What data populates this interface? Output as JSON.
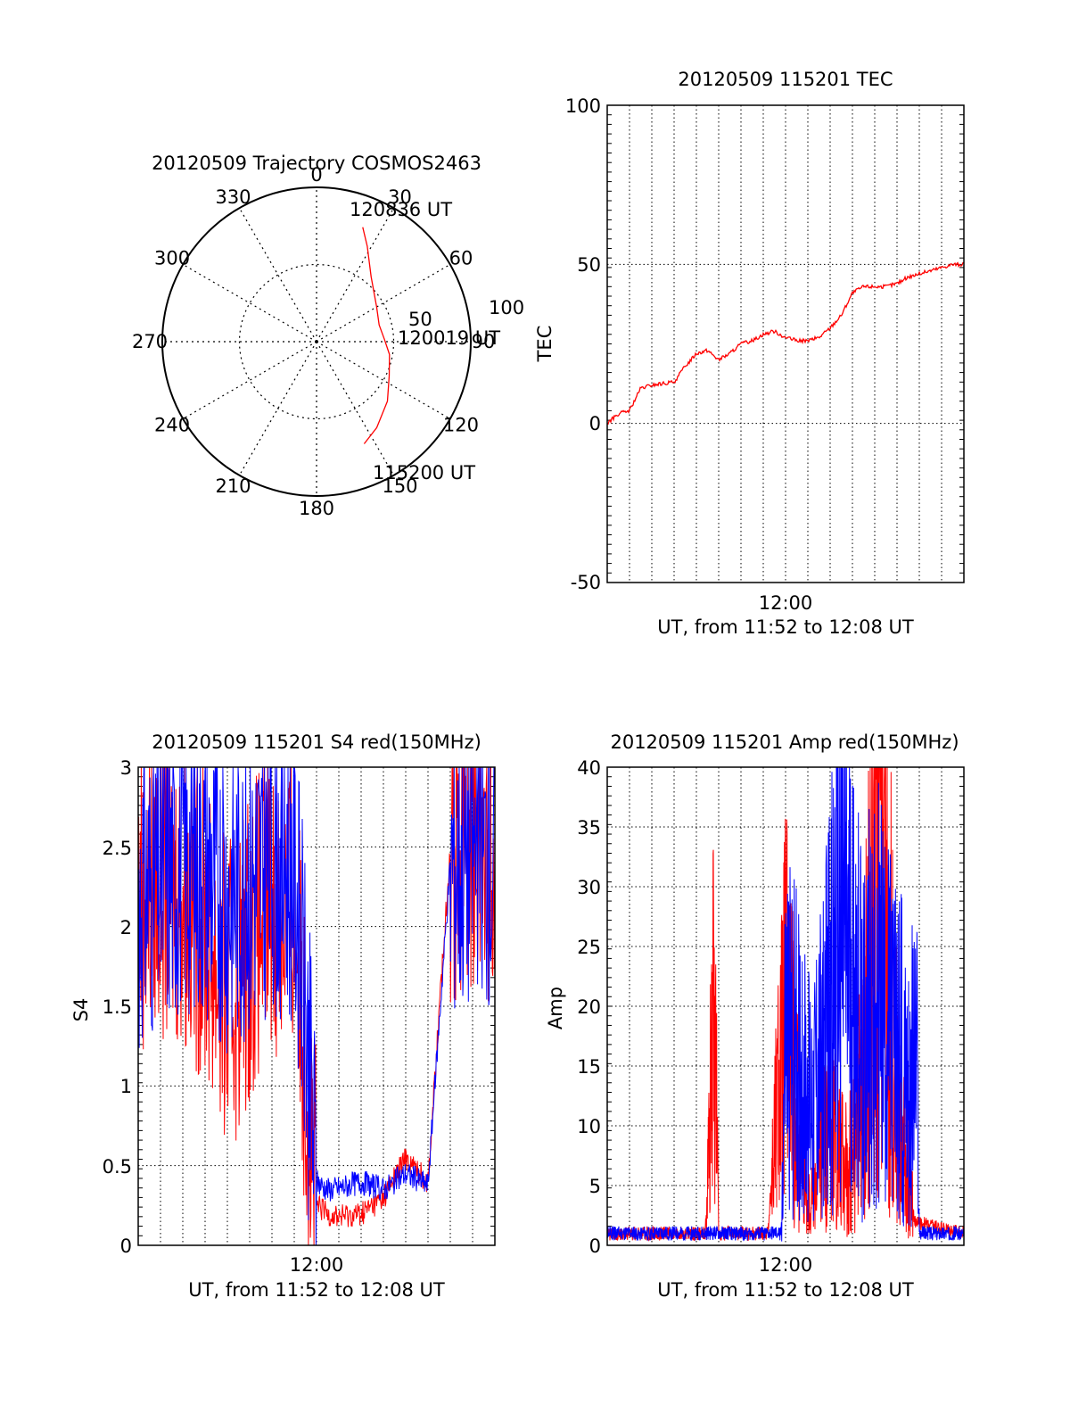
{
  "chart_data": [
    {
      "type": "polar",
      "title": "20120509 Trajectory COSMOS2463",
      "azimuth_labels": [
        "0",
        "30",
        "60",
        "90",
        "120",
        "150",
        "180",
        "210",
        "240",
        "270",
        "300",
        "330"
      ],
      "radial_labels": [
        "50",
        "100"
      ],
      "radial_max": 100,
      "trajectory": {
        "color": "#ff0000",
        "points": [
          [
            22,
            80
          ],
          [
            28,
            70
          ],
          [
            40,
            55
          ],
          [
            60,
            45
          ],
          [
            75,
            42
          ],
          [
            88,
            44
          ],
          [
            100,
            48
          ],
          [
            115,
            52
          ],
          [
            130,
            60
          ],
          [
            145,
            68
          ],
          [
            155,
            73
          ]
        ],
        "labels": [
          {
            "text": "120836 UT",
            "az": 22,
            "r": 80
          },
          {
            "text": "120019 UT",
            "az": 88,
            "r": 44
          },
          {
            "text": "115200 UT",
            "az": 155,
            "r": 73
          }
        ]
      }
    },
    {
      "type": "line",
      "title": "20120509 115201 TEC",
      "xlabel": "UT, from 11:52 to 12:08 UT",
      "ylabel": "TEC",
      "ylim": [
        -50,
        100
      ],
      "yticks": [
        "100",
        "50",
        "0",
        "-50"
      ],
      "xtick_label": "12:00",
      "xlim_minutes": [
        0,
        16
      ],
      "series": [
        {
          "color": "#ff0000",
          "x": [
            0,
            0.5,
            1,
            1.5,
            2,
            3,
            3.5,
            4,
            4.5,
            5,
            5.5,
            6,
            6.5,
            7,
            7.5,
            8,
            8.5,
            9,
            9.5,
            10,
            10.5,
            11,
            11.5,
            12,
            12.5,
            13,
            13.5,
            14,
            14.5,
            15,
            15.5,
            16
          ],
          "y": [
            0,
            3,
            4,
            11,
            12,
            13,
            18,
            22,
            23,
            20,
            22,
            25,
            26,
            28,
            29,
            27,
            26,
            26,
            27,
            30,
            34,
            41,
            43,
            43,
            43,
            44,
            46,
            47,
            48,
            49,
            50,
            50
          ]
        }
      ]
    },
    {
      "type": "line",
      "title": "20120509 115201 S4 red(150MHz)",
      "xlabel": "UT, from 11:52 to 12:08 UT",
      "ylabel": "S4",
      "ylim": [
        0,
        3
      ],
      "yticks": [
        "0",
        "0.5",
        "1",
        "1.5",
        "2",
        "2.5",
        "3"
      ],
      "xtick_label": "12:00",
      "xlim_minutes": [
        0,
        16
      ],
      "series": [
        {
          "color": "#ff0000",
          "x": [
            0,
            1,
            2,
            3,
            4,
            5,
            6,
            7,
            8,
            8.5,
            9,
            10,
            11,
            12,
            13,
            14,
            15,
            16
          ],
          "y": [
            2.2,
            2.3,
            2.2,
            2.0,
            1.5,
            1.9,
            2.2,
            2.1,
            0.25,
            0.2,
            0.18,
            0.2,
            0.3,
            0.55,
            0.4,
            2.5,
            2.6,
            2.5
          ]
        },
        {
          "color": "#0000ff",
          "x": [
            0,
            1,
            2,
            3,
            4,
            5,
            6,
            7,
            8,
            8.5,
            9,
            10,
            11,
            12,
            13,
            14,
            15,
            16
          ],
          "y": [
            2.2,
            2.3,
            2.4,
            2.4,
            2.2,
            2.3,
            2.4,
            2.4,
            0.4,
            0.35,
            0.36,
            0.4,
            0.35,
            0.45,
            0.38,
            2.4,
            2.5,
            2.4
          ]
        }
      ]
    },
    {
      "type": "line",
      "title": "20120509 115201 Amp red(150MHz)",
      "xlabel": "UT, from 11:52 to 12:08 UT",
      "ylabel": "Amp",
      "ylim": [
        0,
        40
      ],
      "yticks": [
        "0",
        "5",
        "10",
        "15",
        "20",
        "25",
        "30",
        "35",
        "40"
      ],
      "xtick_label": "12:00",
      "xlim_minutes": [
        0,
        16
      ],
      "series": [
        {
          "color": "#ff0000",
          "x": [
            0,
            4.4,
            4.6,
            4.8,
            5.0,
            7.2,
            8.0,
            8.5,
            9.0,
            10.0,
            10.8,
            11.5,
            12.2,
            13.0,
            13.8,
            16
          ],
          "y": [
            1,
            1,
            10,
            22,
            1,
            1,
            20,
            12,
            3,
            10,
            6,
            14,
            39,
            12,
            2,
            1
          ]
        },
        {
          "color": "#0000ff",
          "x": [
            0,
            7.8,
            8.0,
            8.5,
            9.0,
            9.5,
            10.0,
            10.5,
            11.0,
            11.5,
            12.0,
            12.5,
            13.0,
            13.5,
            13.9,
            14,
            16
          ],
          "y": [
            1,
            1,
            18,
            16,
            12,
            14,
            20,
            27,
            22,
            17,
            22,
            18,
            16,
            15,
            14,
            1,
            1
          ]
        }
      ]
    }
  ]
}
